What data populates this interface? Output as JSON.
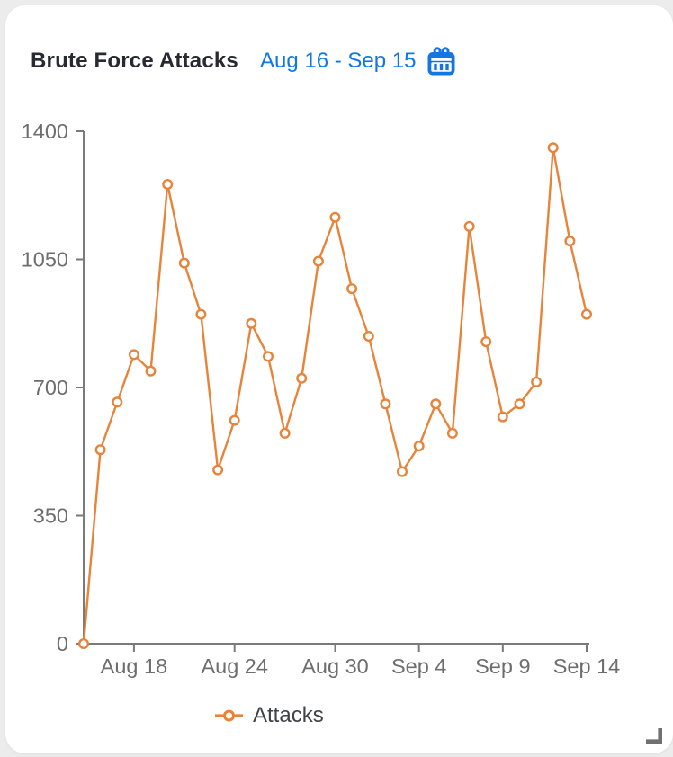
{
  "header": {
    "title": "Brute Force Attacks",
    "date_range": "Aug 16 - Sep 15"
  },
  "legend": {
    "items": [
      {
        "label": "Attacks",
        "marker": "open-circle-line",
        "color": "#e8833a"
      }
    ]
  },
  "colors": {
    "page_bg": "#ececec",
    "card_bg": "#ffffff",
    "title_text": "#272a30",
    "accent_blue": "#1377e3",
    "series_orange": "#e8833a",
    "axis_line": "#7a7a7a",
    "axis_label": "#6e6e6e",
    "legend_text": "#3f4246",
    "resize_handle": "#707070"
  },
  "chart_data": {
    "type": "line",
    "title": "Brute Force Attacks",
    "xlabel": "",
    "ylabel": "",
    "ylim": [
      0,
      1400
    ],
    "y_ticks": [
      0,
      350,
      700,
      1050,
      1400
    ],
    "x_tick_labels": [
      "Aug 18",
      "Aug 24",
      "Aug 30",
      "Sep 4",
      "Sep 9",
      "Sep 14"
    ],
    "x_tick_indices": [
      3,
      9,
      15,
      20,
      25,
      30
    ],
    "grid": false,
    "legend_position": "bottom",
    "marker_style": "open-circle",
    "series": [
      {
        "name": "Attacks",
        "color": "#e8833a",
        "values": [
          0,
          530,
          660,
          790,
          745,
          1255,
          1040,
          900,
          475,
          610,
          875,
          785,
          575,
          725,
          1045,
          1165,
          970,
          840,
          655,
          470,
          540,
          655,
          575,
          1140,
          825,
          620,
          655,
          715,
          1355,
          1100,
          900
        ]
      }
    ]
  }
}
